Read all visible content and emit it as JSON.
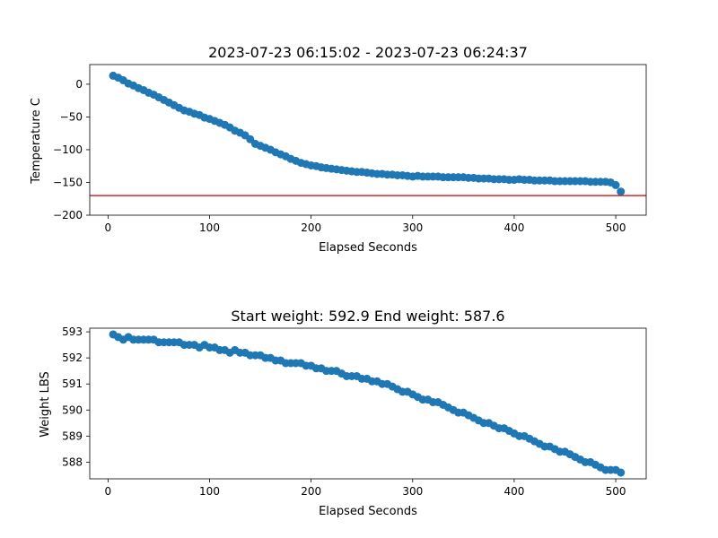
{
  "chart_data": [
    {
      "type": "scatter",
      "title": "2023-07-23 06:15:02 - 2023-07-23 06:24:37",
      "xlabel": "Elapsed Seconds",
      "ylabel": "Temperature C",
      "xlim": [
        -18,
        530
      ],
      "ylim": [
        -200,
        30
      ],
      "xticks": [
        0,
        100,
        200,
        300,
        400,
        500
      ],
      "yticks": [
        0,
        -50,
        -100,
        -150,
        -200
      ],
      "marker_color": "#1f77b4",
      "reference_line": {
        "y": -170,
        "color": "#d62728"
      },
      "x": [
        5,
        10,
        15,
        20,
        25,
        30,
        35,
        40,
        45,
        50,
        55,
        60,
        65,
        70,
        75,
        80,
        85,
        90,
        95,
        100,
        105,
        110,
        115,
        120,
        125,
        130,
        135,
        140,
        145,
        150,
        155,
        160,
        165,
        170,
        175,
        180,
        185,
        190,
        195,
        200,
        205,
        210,
        215,
        220,
        225,
        230,
        235,
        240,
        245,
        250,
        255,
        260,
        265,
        270,
        275,
        280,
        285,
        290,
        295,
        300,
        305,
        310,
        315,
        320,
        325,
        330,
        335,
        340,
        345,
        350,
        355,
        360,
        365,
        370,
        375,
        380,
        385,
        390,
        395,
        400,
        405,
        410,
        415,
        420,
        425,
        430,
        435,
        440,
        445,
        450,
        455,
        460,
        465,
        470,
        475,
        480,
        485,
        490,
        495,
        500,
        505
      ],
      "y": [
        13,
        10,
        6,
        1,
        -2,
        -6,
        -9,
        -13,
        -16,
        -20,
        -24,
        -28,
        -32,
        -36,
        -40,
        -42,
        -45,
        -47,
        -51,
        -53,
        -56,
        -59,
        -62,
        -66,
        -71,
        -74,
        -78,
        -84,
        -91,
        -94,
        -97,
        -100,
        -104,
        -107,
        -110,
        -114,
        -117,
        -120,
        -122,
        -124,
        -125,
        -127,
        -128,
        -129,
        -130,
        -131,
        -132,
        -133,
        -134,
        -134,
        -135,
        -136,
        -137,
        -137,
        -138,
        -138,
        -139,
        -139,
        -140,
        -141,
        -140,
        -141,
        -141,
        -141,
        -141,
        -142,
        -142,
        -142,
        -142,
        -142,
        -143,
        -143,
        -144,
        -144,
        -144,
        -145,
        -145,
        -145,
        -146,
        -146,
        -145,
        -146,
        -146,
        -147,
        -147,
        -147,
        -147,
        -148,
        -148,
        -148,
        -148,
        -148,
        -148,
        -148,
        -149,
        -149,
        -149,
        -149,
        -150,
        -154,
        -164
      ]
    },
    {
      "type": "scatter",
      "title": "Start weight: 592.9 End weight: 587.6",
      "xlabel": "Elapsed Seconds",
      "ylabel": "Weight LBS",
      "xlim": [
        -18,
        530
      ],
      "ylim": [
        587.36,
        593.14
      ],
      "xticks": [
        0,
        100,
        200,
        300,
        400,
        500
      ],
      "yticks": [
        593,
        592,
        591,
        590,
        589,
        588
      ],
      "marker_color": "#1f77b4",
      "x": [
        5,
        10,
        15,
        20,
        25,
        30,
        35,
        40,
        45,
        50,
        55,
        60,
        65,
        70,
        75,
        80,
        85,
        90,
        95,
        100,
        105,
        110,
        115,
        120,
        125,
        130,
        135,
        140,
        145,
        150,
        155,
        160,
        165,
        170,
        175,
        180,
        185,
        190,
        195,
        200,
        205,
        210,
        215,
        220,
        225,
        230,
        235,
        240,
        245,
        250,
        255,
        260,
        265,
        270,
        275,
        280,
        285,
        290,
        295,
        300,
        305,
        310,
        315,
        320,
        325,
        330,
        335,
        340,
        345,
        350,
        355,
        360,
        365,
        370,
        375,
        380,
        385,
        390,
        395,
        400,
        405,
        410,
        415,
        420,
        425,
        430,
        435,
        440,
        445,
        450,
        455,
        460,
        465,
        470,
        475,
        480,
        485,
        490,
        495,
        500,
        505
      ],
      "y": [
        592.9,
        592.8,
        592.7,
        592.8,
        592.7,
        592.7,
        592.7,
        592.7,
        592.7,
        592.6,
        592.6,
        592.6,
        592.6,
        592.6,
        592.5,
        592.5,
        592.5,
        592.4,
        592.5,
        592.4,
        592.4,
        592.3,
        592.3,
        592.2,
        592.3,
        592.2,
        592.2,
        592.1,
        592.1,
        592.1,
        592.0,
        592.0,
        591.9,
        591.9,
        591.8,
        591.8,
        591.8,
        591.8,
        591.7,
        591.7,
        591.6,
        591.6,
        591.5,
        591.5,
        591.5,
        591.4,
        591.3,
        591.3,
        591.3,
        591.2,
        591.2,
        591.1,
        591.1,
        591.0,
        591.0,
        590.9,
        590.8,
        590.7,
        590.7,
        590.6,
        590.5,
        590.4,
        590.4,
        590.3,
        590.3,
        590.2,
        590.1,
        590.0,
        589.9,
        589.9,
        589.8,
        589.7,
        589.6,
        589.5,
        589.5,
        589.4,
        589.3,
        589.3,
        589.2,
        589.1,
        589.0,
        589.0,
        588.9,
        588.8,
        588.7,
        588.6,
        588.6,
        588.5,
        588.4,
        588.4,
        588.3,
        588.2,
        588.1,
        588.0,
        588.0,
        587.9,
        587.8,
        587.7,
        587.7,
        587.7,
        587.6
      ]
    }
  ]
}
